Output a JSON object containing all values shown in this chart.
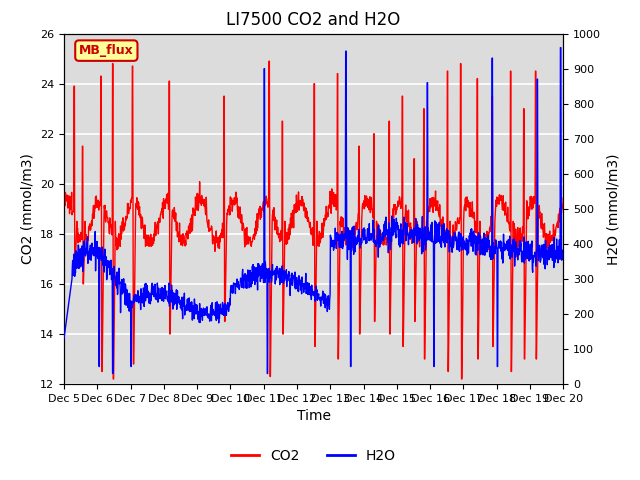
{
  "title": "LI7500 CO2 and H2O",
  "xlabel": "Time",
  "ylabel_left": "CO2 (mmol/m3)",
  "ylabel_right": "H2O (mmol/m3)",
  "ylim_left": [
    12,
    26
  ],
  "ylim_right": [
    0,
    1000
  ],
  "yticks_left": [
    12,
    14,
    16,
    18,
    20,
    22,
    24,
    26
  ],
  "yticks_right": [
    0,
    100,
    200,
    300,
    400,
    500,
    600,
    700,
    800,
    900,
    1000
  ],
  "xtick_labels": [
    "Dec 5",
    "Dec 6",
    "Dec 7",
    "Dec 8",
    "Dec 9",
    "Dec 10",
    "Dec 11",
    "Dec 12",
    "Dec 13",
    "Dec 14",
    "Dec 15",
    "Dec 16",
    "Dec 17",
    "Dec 18",
    "Dec 19",
    "Dec 20"
  ],
  "co2_color": "#FF0000",
  "h2o_color": "#0000FF",
  "background_color": "#FFFFFF",
  "plot_bg_color": "#DCDCDC",
  "grid_color": "#FFFFFF",
  "annotation_text": "MB_flux",
  "annotation_bg": "#FFFF99",
  "annotation_border": "#CC0000",
  "legend_co2": "CO2",
  "legend_h2o": "H2O",
  "title_fontsize": 12,
  "axis_fontsize": 10,
  "tick_fontsize": 8,
  "legend_fontsize": 10,
  "line_width": 1.0
}
